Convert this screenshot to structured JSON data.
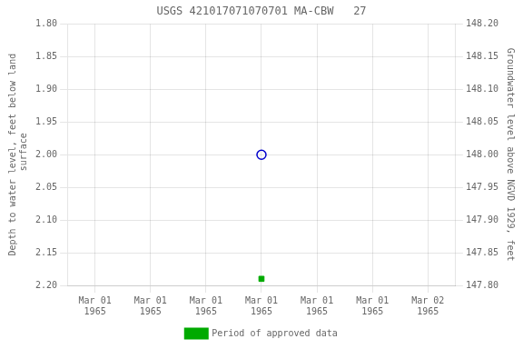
{
  "chart_data": {
    "type": "scatter",
    "title": "USGS 421017071070701 MA-CBW   27",
    "x_label": null,
    "y_label": "Depth to water level, feet below land\n surface",
    "y2_label": "Groundwater level above NGVD 1929, feet",
    "categories": [
      "Mar 01\n1965",
      "Mar 01\n1965",
      "Mar 01\n1965",
      "Mar 01\n1965",
      "Mar 01\n1965",
      "Mar 01\n1965",
      "Mar 02\n1965"
    ],
    "series": [
      {
        "color": "#0000cc",
        "marker": "circle",
        "values": [
          null,
          null,
          null,
          2.0,
          null,
          null,
          null
        ]
      },
      {
        "name": "Period of approved data",
        "color": "#00aa00",
        "marker": "square",
        "values": [
          null,
          null,
          null,
          2.19,
          null,
          null,
          null
        ]
      }
    ],
    "ylim": [
      2.2,
      1.8
    ],
    "yticks": [
      {
        "value": 1.8,
        "label": "1.80"
      },
      1.85,
      {
        "value": 1.9,
        "label": "1.90"
      },
      1.95,
      {
        "value": 2.0,
        "label": "2.00"
      },
      2.05,
      {
        "value": 2.1,
        "label": "2.10"
      },
      2.15,
      {
        "value": 2.2,
        "label": "2.20"
      }
    ],
    "y2lim": [
      147.8,
      148.2
    ],
    "y2ticks": [
      {
        "value": 148.2,
        "label": "148.20"
      },
      148.15,
      {
        "value": 148.1,
        "label": "148.10"
      },
      148.05,
      {
        "value": 148.0,
        "label": "148.00"
      },
      147.95,
      {
        "value": 147.9,
        "label": "147.90"
      },
      147.85,
      {
        "value": 147.8,
        "label": "147.80"
      }
    ],
    "grid": true,
    "legend": "bottom"
  }
}
